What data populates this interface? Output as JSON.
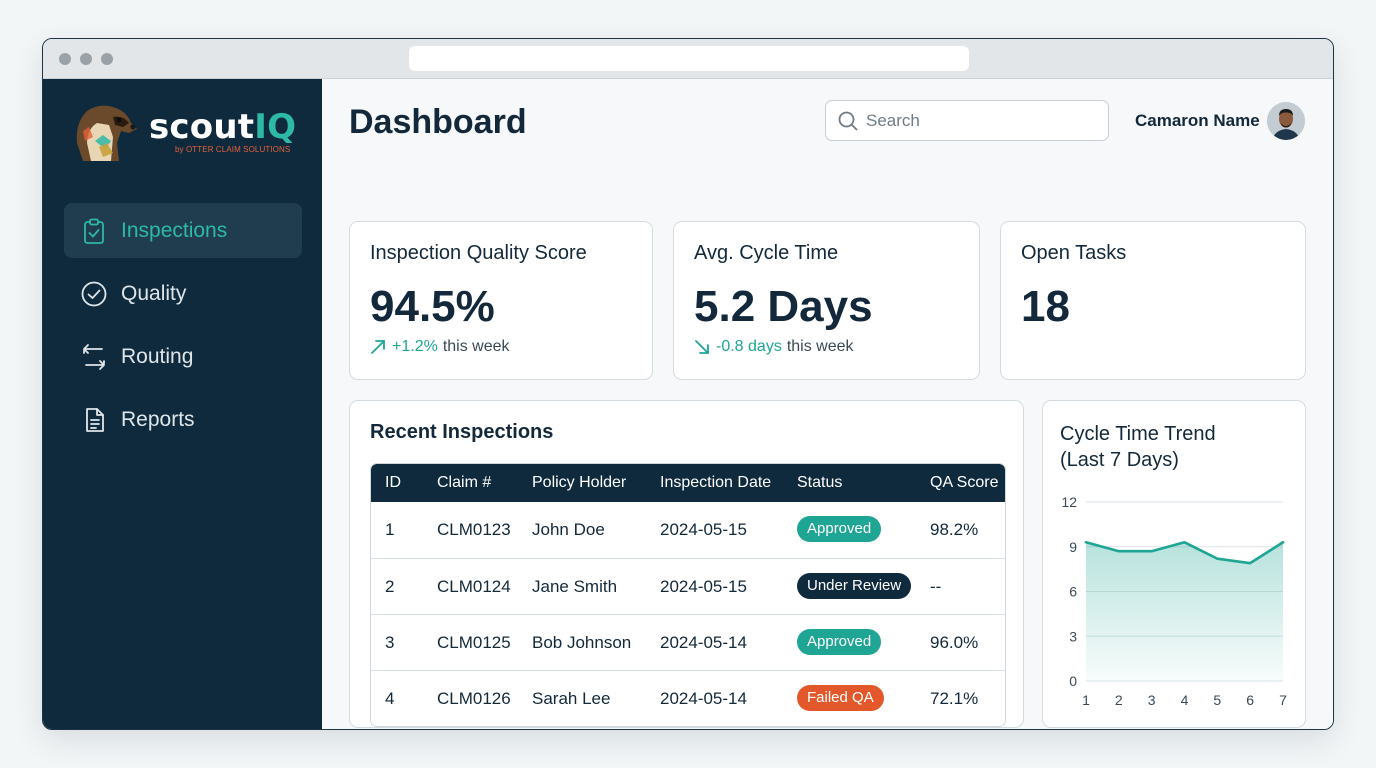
{
  "app": {
    "logo_word_a": "scout",
    "logo_word_b": "IQ",
    "logo_tagline": "by OTTER CLAIM SOLUTIONS"
  },
  "sidebar": {
    "items": [
      {
        "label": "Inspections",
        "icon": "clipboard-check-icon",
        "active": true
      },
      {
        "label": "Quality",
        "icon": "check-circle-icon",
        "active": false
      },
      {
        "label": "Routing",
        "icon": "routing-arrows-icon",
        "active": false
      },
      {
        "label": "Reports",
        "icon": "document-icon",
        "active": false
      }
    ]
  },
  "header": {
    "title": "Dashboard",
    "search_placeholder": "Search",
    "user_name": "Camaron Name"
  },
  "kpis": [
    {
      "title": "Inspection Quality Score",
      "value": "94.5%",
      "delta": "+1.2%",
      "suffix": "this week",
      "direction": "up"
    },
    {
      "title": "Avg. Cycle Time",
      "value": "5.2 Days",
      "delta": "-0.8 days",
      "suffix": "this week",
      "direction": "down"
    },
    {
      "title": "Open Tasks",
      "value": "18"
    }
  ],
  "recent": {
    "title": "Recent Inspections",
    "columns": [
      "ID",
      "Claim #",
      "Policy Holder",
      "Inspection Date",
      "Status",
      "QA Score"
    ],
    "rows": [
      {
        "id": "1",
        "claim": "CLM0123",
        "holder": "John Doe",
        "date": "2024-05-15",
        "status": "Approved",
        "status_color": "#1ea594",
        "qa": "98.2%"
      },
      {
        "id": "2",
        "claim": "CLM0124",
        "holder": "Jane Smith",
        "date": "2024-05-15",
        "status": "Under Review",
        "status_color": "#0f2a3d",
        "qa": "--"
      },
      {
        "id": "3",
        "claim": "CLM0125",
        "holder": "Bob Johnson",
        "date": "2024-05-14",
        "status": "Approved",
        "status_color": "#1ea594",
        "qa": "96.0%"
      },
      {
        "id": "4",
        "claim": "CLM0126",
        "holder": "Sarah Lee",
        "date": "2024-05-14",
        "status": "Failed QA",
        "status_color": "#e2582b",
        "qa": "72.1%"
      }
    ]
  },
  "trend": {
    "title_line1": "Cycle Time Trend",
    "title_line2": "(Last 7 Days)"
  },
  "chart_data": {
    "type": "area",
    "x": [
      1,
      2,
      3,
      4,
      5,
      6,
      7
    ],
    "values": [
      9.3,
      8.7,
      8.7,
      9.3,
      8.2,
      7.9,
      9.3
    ],
    "ylim": [
      0,
      12
    ],
    "yticks": [
      0,
      3,
      6,
      9,
      12
    ],
    "xticks": [
      "1",
      "2",
      "3",
      "4",
      "5",
      "6",
      "7"
    ],
    "grid": true,
    "color": "#1ea594"
  },
  "colors": {
    "sidebar": "#0f2a3d",
    "accent": "#2eb8a6",
    "positive": "#1ea594",
    "danger": "#e2582b"
  }
}
